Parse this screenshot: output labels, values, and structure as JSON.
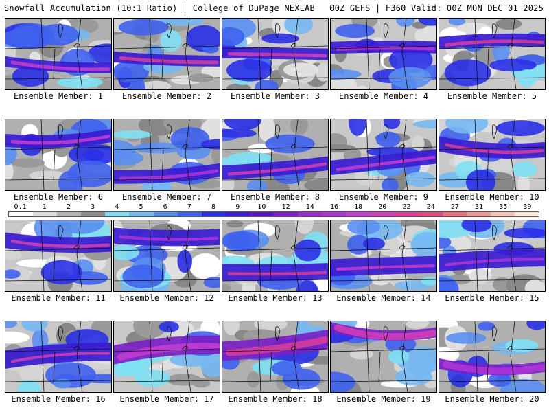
{
  "header": {
    "title": "Snowfall Accumulation (10:1 Ratio) | College of DuPage NEXLAB",
    "run_info": "00Z GEFS | F360 Valid: 00Z MON DEC 01 2025"
  },
  "colorbar": {
    "labels": [
      "0.1",
      "1",
      "2",
      "3",
      "4",
      "5",
      "6",
      "7",
      "8",
      "9",
      "10",
      "12",
      "14",
      "16",
      "18",
      "20",
      "22",
      "24",
      "27",
      "31",
      "35",
      "39"
    ],
    "colors": [
      "#ffffff",
      "#d9d9d9",
      "#b3b3b3",
      "#8c8c8c",
      "#7fe0f5",
      "#76b8f2",
      "#5a8ff0",
      "#3f62ee",
      "#2a30e6",
      "#3a1bd0",
      "#5a18c0",
      "#7a20c4",
      "#9a2ad0",
      "#b035d8",
      "#c63cd2",
      "#d43eb6",
      "#dc3d98",
      "#e04880",
      "#e66a78",
      "#ee9a94",
      "#f4c2b8",
      "#fbe6d8"
    ]
  },
  "members": [
    {
      "label": "Ensemble Member: 1"
    },
    {
      "label": "Ensemble Member: 2"
    },
    {
      "label": "Ensemble Member: 3"
    },
    {
      "label": "Ensemble Member: 4"
    },
    {
      "label": "Ensemble Member: 5"
    },
    {
      "label": "Ensemble Member: 6"
    },
    {
      "label": "Ensemble Member: 7"
    },
    {
      "label": "Ensemble Member: 8"
    },
    {
      "label": "Ensemble Member: 9"
    },
    {
      "label": "Ensemble Member: 10"
    },
    {
      "label": "Ensemble Member: 11"
    },
    {
      "label": "Ensemble Member: 12"
    },
    {
      "label": "Ensemble Member: 13"
    },
    {
      "label": "Ensemble Member: 14"
    },
    {
      "label": "Ensemble Member: 15"
    },
    {
      "label": "Ensemble Member: 16"
    },
    {
      "label": "Ensemble Member: 17"
    },
    {
      "label": "Ensemble Member: 18"
    },
    {
      "label": "Ensemble Member: 19"
    },
    {
      "label": "Ensemble Member: 20"
    }
  ]
}
